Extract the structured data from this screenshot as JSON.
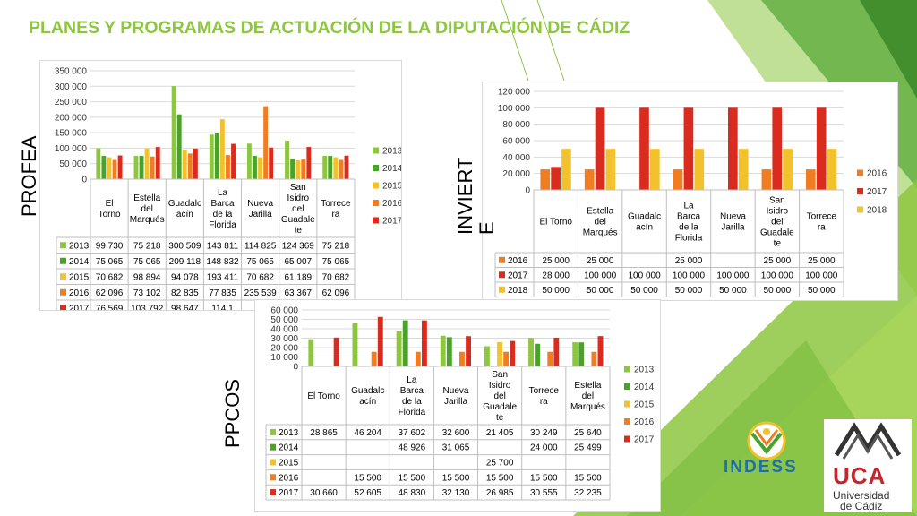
{
  "title": "PLANES Y PROGRAMAS DE ACTUACIÓN DE LA DIPUTACIÓN DE CÁDIZ",
  "labels": {
    "profea": "PROFEA",
    "invierte": "INVIERT",
    "invierte2": "E",
    "ppcos": "PPCOS"
  },
  "logos": {
    "indess": "INDESS",
    "uca_letters": "UCA",
    "uca_line1": "Universidad",
    "uca_line2": "de Cádiz"
  },
  "colors": {
    "2013": "#8dc63f",
    "2014": "#4aa22b",
    "2015": "#f2c12e",
    "2016": "#f07d22",
    "2017": "#d92b1e",
    "2018": "#f2c12e",
    "accent": "#8dc63f"
  },
  "chart_data": [
    {
      "type": "bar",
      "name_label": "PROFEA",
      "categories": [
        "El Torno",
        "Estella del Marqués",
        "Guadalcacín",
        "La Barca de la Florida",
        "Nueva Jarilla",
        "San Isidro del Guadalete",
        "Torrecera"
      ],
      "category_lines": [
        [
          "El",
          "Torno"
        ],
        [
          "Estella",
          "del",
          "Marqués"
        ],
        [
          "Guadalc",
          "acín"
        ],
        [
          "La",
          "Barca",
          "de la",
          "Florida"
        ],
        [
          "Nueva",
          "Jarilla"
        ],
        [
          "San",
          "Isidro",
          "del",
          "Guadale",
          "te"
        ],
        [
          "Torrece",
          "ra"
        ]
      ],
      "ylim": [
        0,
        350000
      ],
      "yticks": [
        "0",
        "50 000",
        "100 000",
        "150 000",
        "200 000",
        "250 000",
        "300 000",
        "350 000"
      ],
      "series": [
        {
          "name": "2013",
          "values": [
            99730,
            75218,
            300509,
            143811,
            114825,
            124369,
            75218
          ],
          "display": [
            "99 730",
            "75 218",
            "300 509",
            "143 811",
            "114 825",
            "124 369",
            "75 218"
          ]
        },
        {
          "name": "2014",
          "values": [
            75065,
            75065,
            209118,
            148832,
            75065,
            65007,
            75065
          ],
          "display": [
            "75 065",
            "75 065",
            "209 118",
            "148 832",
            "75 065",
            "65 007",
            "75 065"
          ]
        },
        {
          "name": "2015",
          "values": [
            70682,
            98894,
            94078,
            193411,
            70682,
            61189,
            70682
          ],
          "display": [
            "70 682",
            "98 894",
            "94 078",
            "193 411",
            "70 682",
            "61 189",
            "70 682"
          ]
        },
        {
          "name": "2016",
          "values": [
            62096,
            73102,
            82835,
            77835,
            235539,
            63367,
            62096
          ],
          "display": [
            "62 096",
            "73 102",
            "82 835",
            "77 835",
            "235 539",
            "63 367",
            "62 096"
          ]
        },
        {
          "name": "2017",
          "values": [
            76569,
            103792,
            98647,
            114100,
            102000,
            104000,
            76000
          ],
          "display": [
            "76 569",
            "103 792",
            "98 647",
            "114 1",
            "",
            "",
            ""
          ]
        }
      ],
      "legend": "right"
    },
    {
      "type": "bar",
      "name_label": "INVIERTE",
      "categories": [
        "El Torno",
        "Estella del Marqués",
        "Guadalcacín",
        "La Barca de la Florida",
        "Nueva Jarilla",
        "San Isidro del Guadalete",
        "Torrecera"
      ],
      "category_lines": [
        [
          "El Torno"
        ],
        [
          "Estella",
          "del",
          "Marqués"
        ],
        [
          "Guadalc",
          "acín"
        ],
        [
          "La",
          "Barca",
          "de la",
          "Florida"
        ],
        [
          "Nueva",
          "Jarilla"
        ],
        [
          "San",
          "Isidro",
          "del",
          "Guadale",
          "te"
        ],
        [
          "Torrece",
          "ra"
        ]
      ],
      "ylim": [
        0,
        120000
      ],
      "yticks": [
        "0",
        "20 000",
        "40 000",
        "60 000",
        "80 000",
        "100 000",
        "120 000"
      ],
      "series": [
        {
          "name": "2016",
          "values": [
            25000,
            25000,
            null,
            25000,
            null,
            25000,
            25000
          ],
          "display": [
            "25 000",
            "25 000",
            "",
            "25 000",
            "",
            "25 000",
            "25 000"
          ]
        },
        {
          "name": "2017",
          "values": [
            28000,
            100000,
            100000,
            100000,
            100000,
            100000,
            100000
          ],
          "display": [
            "28 000",
            "100 000",
            "100 000",
            "100 000",
            "100 000",
            "100 000",
            "100 000"
          ]
        },
        {
          "name": "2018",
          "values": [
            50000,
            50000,
            50000,
            50000,
            50000,
            50000,
            50000
          ],
          "display": [
            "50 000",
            "50 000",
            "50 000",
            "50 000",
            "50 000",
            "50 000",
            "50 000"
          ]
        }
      ],
      "legend": "right"
    },
    {
      "type": "bar",
      "name_label": "PPCOS",
      "categories": [
        "El Torno",
        "Guadalcacín",
        "La Barca de la Florida",
        "Nueva Jarilla",
        "San Isidro del Guadalete",
        "Torrecera",
        "Estella del Marqués"
      ],
      "category_lines": [
        [
          "El Torno"
        ],
        [
          "Guadalc",
          "acín"
        ],
        [
          "La",
          "Barca",
          "de la",
          "Florida"
        ],
        [
          "Nueva",
          "Jarilla"
        ],
        [
          "San",
          "Isidro",
          "del",
          "Guadale",
          "te"
        ],
        [
          "Torrece",
          "ra"
        ],
        [
          "Estella",
          "del",
          "Marqués"
        ]
      ],
      "ylim": [
        0,
        60000
      ],
      "yticks": [
        "0",
        "10 000",
        "20 000",
        "30 000",
        "40 000",
        "50 000",
        "60 000"
      ],
      "series": [
        {
          "name": "2013",
          "values": [
            28865,
            46204,
            37602,
            32600,
            21405,
            30249,
            25640
          ],
          "display": [
            "28 865",
            "46 204",
            "37 602",
            "32 600",
            "21 405",
            "30 249",
            "25 640"
          ]
        },
        {
          "name": "2014",
          "values": [
            null,
            null,
            48926,
            31065,
            null,
            24000,
            25499
          ],
          "display": [
            "",
            "",
            "48 926",
            "31 065",
            "",
            "24 000",
            "25 499"
          ]
        },
        {
          "name": "2015",
          "values": [
            null,
            null,
            null,
            null,
            25700,
            null,
            null
          ],
          "display": [
            "",
            "",
            "",
            "",
            "25 700",
            "",
            ""
          ]
        },
        {
          "name": "2016",
          "values": [
            null,
            15500,
            15500,
            15500,
            15500,
            15500,
            15500
          ],
          "display": [
            "",
            "15 500",
            "15 500",
            "15 500",
            "15 500",
            "15 500",
            "15 500"
          ]
        },
        {
          "name": "2017",
          "values": [
            30660,
            52605,
            48830,
            32130,
            26985,
            30555,
            32235
          ],
          "display": [
            "30 660",
            "52 605",
            "48 830",
            "32 130",
            "26 985",
            "30 555",
            "32 235"
          ]
        }
      ],
      "legend": "right"
    }
  ]
}
